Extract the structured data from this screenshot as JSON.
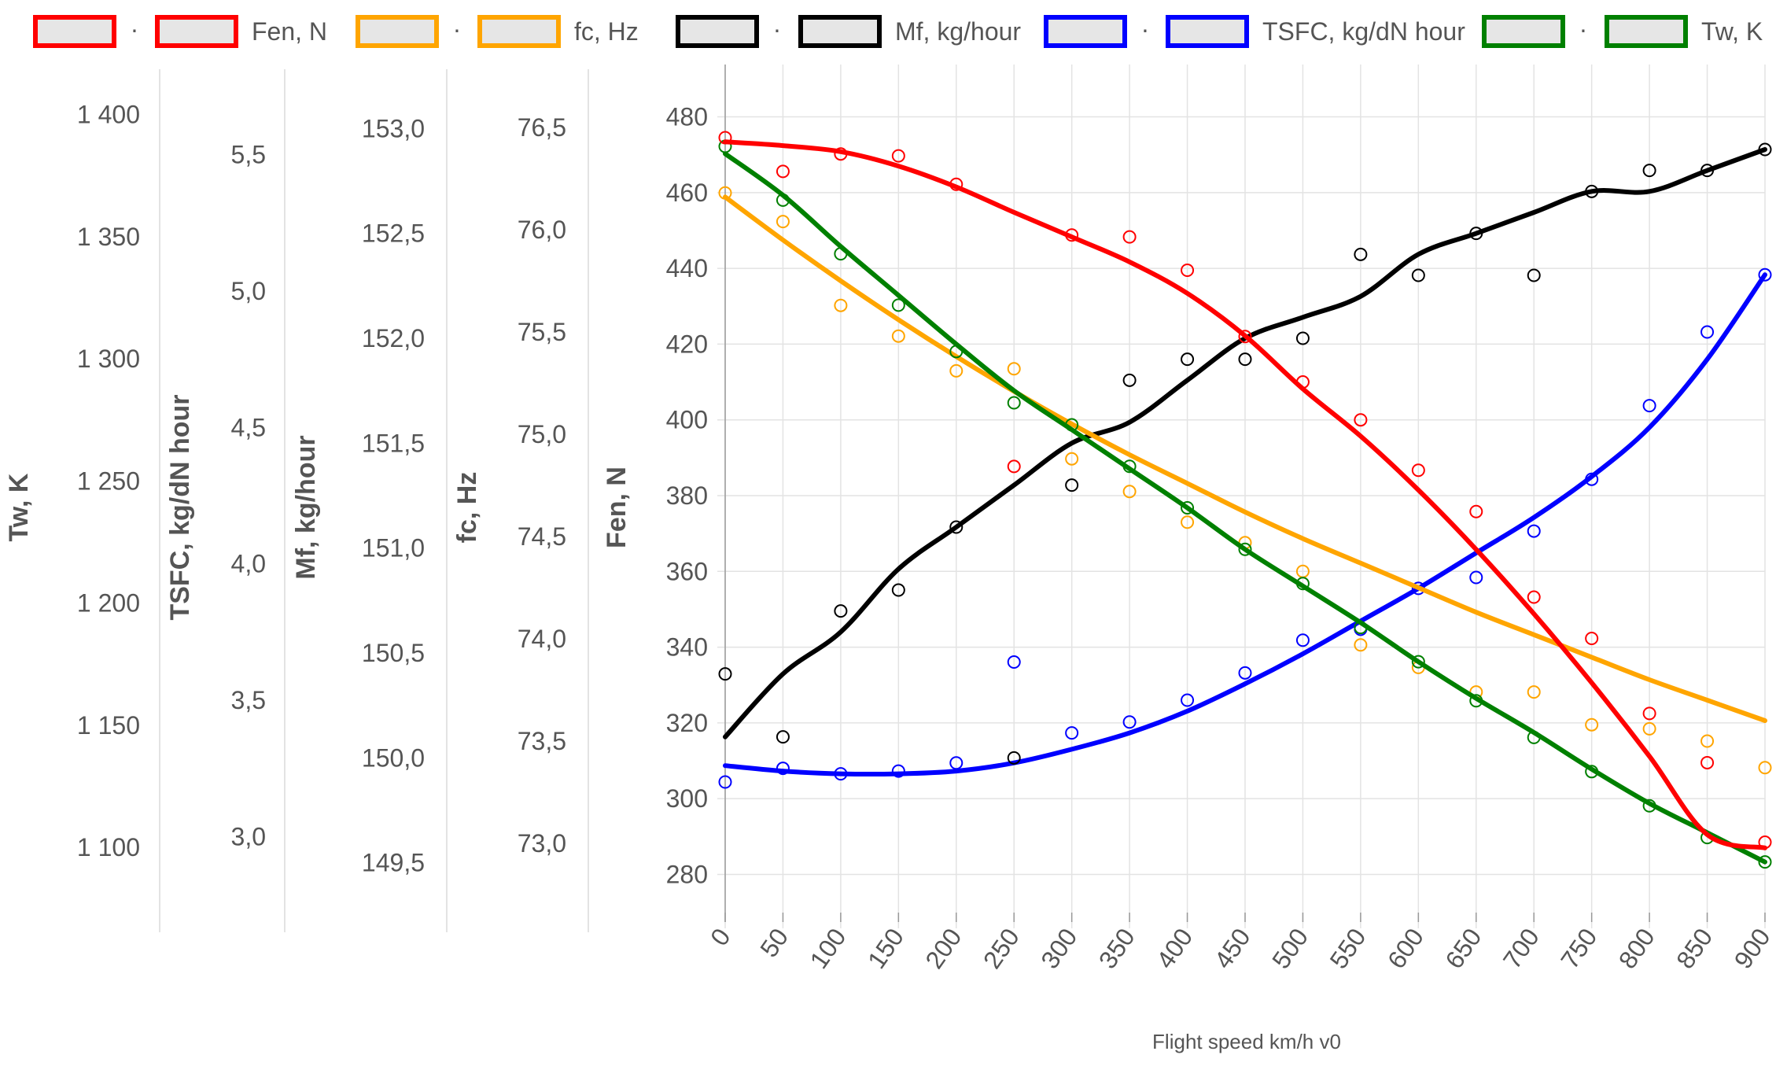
{
  "chart_data": {
    "type": "scatter",
    "x": [
      0,
      50,
      100,
      150,
      200,
      250,
      300,
      350,
      400,
      450,
      500,
      550,
      600,
      650,
      700,
      750,
      800,
      850,
      900
    ],
    "xlabel": "Flight speed km/h v0",
    "xlim": [
      0,
      900
    ],
    "x_tick_labels": [
      "0",
      "50",
      "100",
      "150",
      "200",
      "250",
      "300",
      "350",
      "400",
      "450",
      "500",
      "550",
      "600",
      "650",
      "700",
      "750",
      "800",
      "850",
      "900"
    ],
    "grid": true,
    "legend_position": "top",
    "series": [
      {
        "name": "Fen, N",
        "color": "#ff0000",
        "ylabel": "Fen, N",
        "ylim": [
          272,
          488
        ],
        "ticks": [
          280,
          300,
          320,
          340,
          360,
          380,
          400,
          420,
          440,
          460,
          480
        ],
        "tick_labels": [
          "280",
          "300",
          "320",
          "340",
          "360",
          "380",
          "400",
          "420",
          "440",
          "460",
          "480"
        ],
        "values": [
          474.5,
          465.6,
          470.2,
          469.7,
          462.2,
          387.7,
          448.8,
          448.3,
          439.5,
          422.0,
          410.0,
          400.0,
          386.7,
          375.8,
          353.2,
          342.3,
          322.5,
          309.5,
          288.5
        ],
        "trend": [
          473.4,
          472.4,
          470.8,
          467.0,
          461.5,
          454.8,
          448.3,
          441.7,
          433.4,
          422.2,
          408.2,
          395.7,
          381.5,
          365.8,
          348.8,
          330.6,
          311.2,
          290.5,
          287.0
        ]
      },
      {
        "name": "fc, Hz",
        "color": "#ffa500",
        "ylabel": "fc, Hz",
        "ylim": [
          72.7,
          76.7
        ],
        "ticks": [
          73.0,
          73.5,
          74.0,
          74.5,
          75.0,
          75.5,
          76.0,
          76.5
        ],
        "tick_labels": [
          "73,0",
          "73,5",
          "74,0",
          "74,5",
          "75,0",
          "75,5",
          "76,0",
          "76,5"
        ],
        "values": [
          76.18,
          76.04,
          75.63,
          75.48,
          75.31,
          75.32,
          74.88,
          74.72,
          74.57,
          74.47,
          74.33,
          73.97,
          73.86,
          73.74,
          73.74,
          73.58,
          73.56,
          73.5,
          73.37
        ],
        "trend": [
          76.16,
          75.95,
          75.75,
          75.56,
          75.38,
          75.21,
          75.05,
          74.9,
          74.76,
          74.62,
          74.49,
          74.37,
          74.25,
          74.13,
          74.02,
          73.91,
          73.8,
          73.7,
          73.6
        ]
      },
      {
        "name": "Mf, kg/hour",
        "color": "#000000",
        "ylabel": "Mf, kg/hour",
        "ylim": [
          149.3,
          153.2
        ],
        "ticks": [
          149.5,
          150.0,
          150.5,
          151.0,
          151.5,
          152.0,
          152.5,
          153.0
        ],
        "tick_labels": [
          "149,5",
          "150,0",
          "150,5",
          "151,0",
          "151,5",
          "152,0",
          "152,5",
          "153,0"
        ],
        "values": [
          150.4,
          150.1,
          150.7,
          150.8,
          151.1,
          150.0,
          151.3,
          151.8,
          151.9,
          151.9,
          152.0,
          152.4,
          152.3,
          152.5,
          152.3,
          152.7,
          152.8,
          152.8,
          152.9
        ],
        "trend": [
          150.1,
          150.4,
          150.6,
          150.9,
          151.1,
          151.3,
          151.5,
          151.6,
          151.8,
          152.0,
          152.1,
          152.2,
          152.4,
          152.5,
          152.6,
          152.7,
          152.7,
          152.8,
          152.9
        ]
      },
      {
        "name": "TSFC, kg/dN hour",
        "color": "#0000ff",
        "ylabel": "TSFC, kg/dN hour",
        "ylim": [
          2.75,
          5.75
        ],
        "ticks": [
          3.0,
          3.5,
          4.0,
          4.5,
          5.0,
          5.5
        ],
        "tick_labels": [
          "3,0",
          "3,5",
          "4,0",
          "4,5",
          "5,0",
          "5,5"
        ],
        "values": [
          3.2,
          3.25,
          3.23,
          3.24,
          3.27,
          3.64,
          3.38,
          3.42,
          3.5,
          3.6,
          3.72,
          3.76,
          3.91,
          3.95,
          4.12,
          4.31,
          4.58,
          4.85,
          5.06
        ],
        "trend": [
          3.26,
          3.24,
          3.23,
          3.23,
          3.24,
          3.27,
          3.32,
          3.38,
          3.46,
          3.56,
          3.67,
          3.79,
          3.91,
          4.04,
          4.17,
          4.32,
          4.5,
          4.75,
          5.06
        ]
      },
      {
        "name": "Tw, K",
        "color": "#008000",
        "ylabel": "Tw, K",
        "ylim": [
          1076.5,
          1411.5
        ],
        "ticks": [
          1100,
          1150,
          1200,
          1250,
          1300,
          1350,
          1400
        ],
        "tick_labels": [
          "1 100",
          "1 150",
          "1 200",
          "1 250",
          "1 300",
          "1 350",
          "1 400"
        ],
        "values": [
          1387,
          1365,
          1343,
          1322,
          1303,
          1282,
          1273,
          1256,
          1239,
          1222,
          1208,
          1190,
          1176,
          1160,
          1145,
          1131,
          1117,
          1104,
          1094
        ],
        "trend": [
          1384,
          1367,
          1346,
          1326,
          1306,
          1287,
          1271,
          1255,
          1239,
          1222,
          1207,
          1192,
          1176,
          1161,
          1147,
          1132,
          1118,
          1106,
          1094
        ]
      }
    ]
  }
}
